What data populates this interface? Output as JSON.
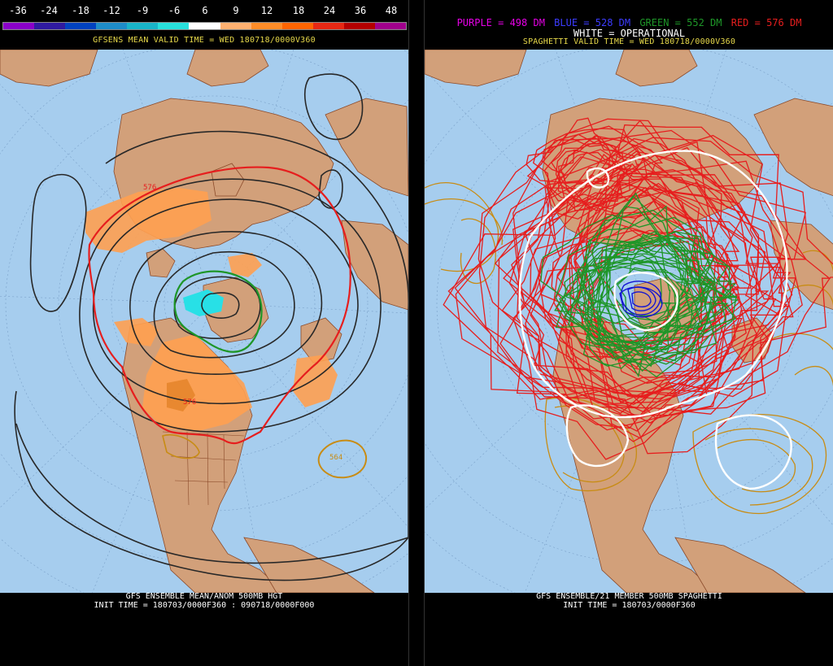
{
  "left_panel": {
    "legend": {
      "labels": [
        "-36",
        "-24",
        "-18",
        "-12",
        "-9",
        "-6",
        "6",
        "9",
        "12",
        "18",
        "24",
        "36",
        "48"
      ],
      "colors": [
        "#8a00c8",
        "#2f1aa0",
        "#0042c0",
        "#1e8cc8",
        "#19b4c8",
        "#28e0dc",
        "#ffffff",
        "#ffb070",
        "#ff8c28",
        "#ff6400",
        "#e62814",
        "#b40000",
        "#a0008c"
      ]
    },
    "top_title": "GFSENS MEAN VALID TIME = WED 180718/0000V360",
    "bottom_title_1": "GFS ENSEMBLE MEAN/ANOM 500MB HGT",
    "bottom_title_2": "INIT TIME = 180703/0000F360 : 090718/0000F000",
    "contour_labels": [
      "576",
      "576",
      "564"
    ]
  },
  "right_panel": {
    "key": {
      "purple": "PURPLE = 498 DM",
      "blue": "BLUE = 528 DM",
      "green": "GREEN = 552 DM",
      "red": "RED = 576 DM",
      "white": "WHITE = OPERATIONAL"
    },
    "top_title": "SPAGHETTI VALID TIME = WED 180718/0000V360",
    "bottom_title_1": "GFS ENSEMBLE/21 MEMBER 500MB SPAGHETTI",
    "bottom_title_2": "INIT TIME = 180703/0000F360"
  },
  "colors": {
    "ocean": "#a6cdee",
    "land": "#d2a07a",
    "border": "#8b4a2a",
    "red": "#e61e1e",
    "green": "#1e9628",
    "blue": "#1414d2",
    "gold": "#c88c14",
    "white": "#ffffff",
    "mean_dark": "#282828",
    "anom_pos": "#ffa050",
    "anom_neg": "#28e0e6"
  }
}
